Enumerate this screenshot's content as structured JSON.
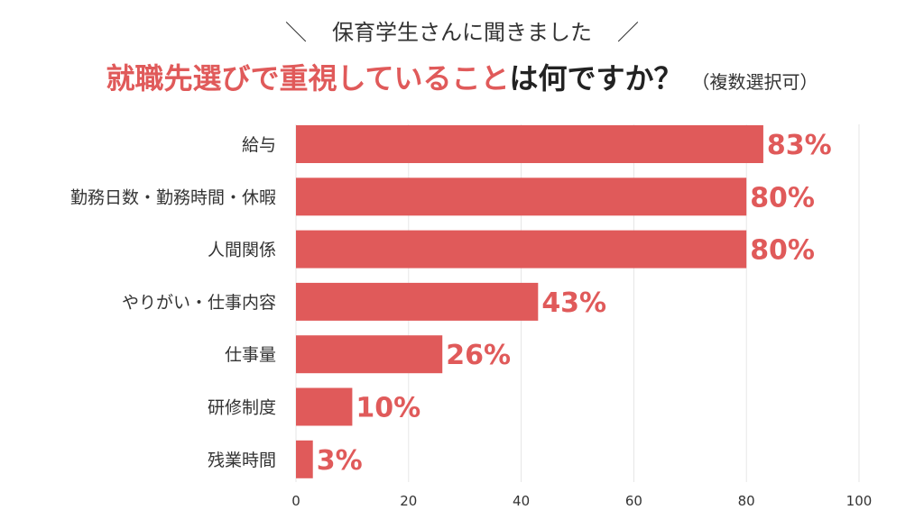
{
  "header": {
    "subtitle": "保育学生さんに聞きました",
    "slash_left": "＼",
    "slash_right": "／",
    "title_highlight": "就職先選びで重視していること",
    "title_rest": "は何ですか？",
    "title_note": "（複数選択可）"
  },
  "colors": {
    "accent": "#e05a5a",
    "bar": "#e05a5a",
    "grid": "#e6e6e6",
    "text": "#333333"
  },
  "chart_data": {
    "type": "bar",
    "orientation": "horizontal",
    "title": "就職先選びで重視していることは何ですか？（複数選択可）",
    "categories": [
      "給与",
      "勤務日数・勤務時間・休暇",
      "人間関係",
      "やりがい・仕事内容",
      "仕事量",
      "研修制度",
      "残業時間"
    ],
    "values": [
      83,
      80,
      80,
      43,
      26,
      10,
      3
    ],
    "value_labels": [
      "83%",
      "80%",
      "80%",
      "43%",
      "26%",
      "10%",
      "3%"
    ],
    "xlim": [
      0,
      100
    ],
    "xticks": [
      0,
      20,
      40,
      60,
      80,
      100
    ],
    "xtick_labels": [
      "0",
      "20",
      "40",
      "60",
      "80",
      "100"
    ],
    "xlabel": "",
    "ylabel": "",
    "grid": true
  }
}
